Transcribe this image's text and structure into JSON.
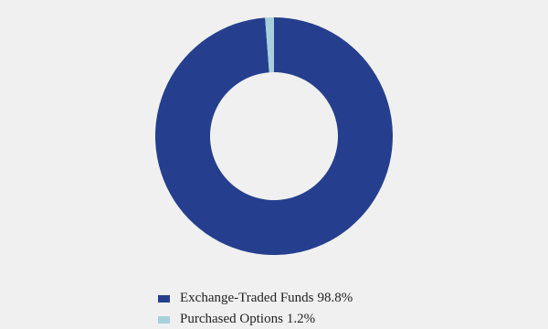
{
  "chart_data": {
    "type": "donut",
    "categories": [
      "Exchange-Traded Funds",
      "Purchased Options"
    ],
    "values": [
      98.8,
      1.2
    ],
    "value_labels": [
      "98.8%",
      "1.2%"
    ],
    "colors": [
      "#253f8e",
      "#a8d0dc"
    ]
  }
}
